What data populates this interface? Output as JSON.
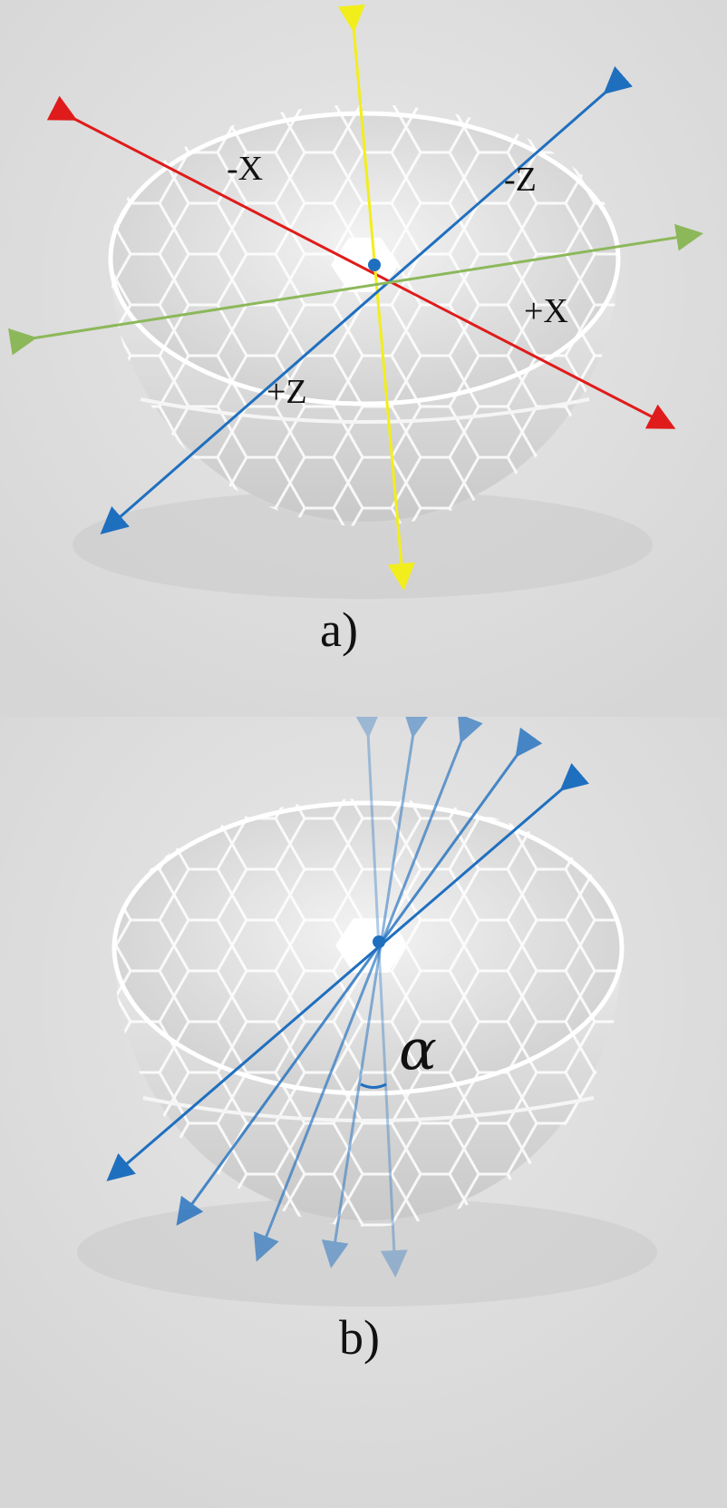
{
  "panel_a": {
    "caption": "a)",
    "axis_labels": {
      "neg_x": "-X",
      "neg_z": "-Z",
      "pos_x": "+X",
      "pos_z": "+Z"
    },
    "axis_colors": {
      "x": "#e01b1b",
      "y": "#f2ee1c",
      "z": "#1f6fbf",
      "other": "#8cb85a"
    }
  },
  "panel_b": {
    "caption": "b)",
    "angle_symbol": "α",
    "ray_color": "#1f6fbf",
    "ray_count": 5
  },
  "colors": {
    "background": "#dcdcdc",
    "bowl_face": "#e6e6e6",
    "bowl_edge": "#ffffff",
    "center_cell": "#ffffff"
  }
}
